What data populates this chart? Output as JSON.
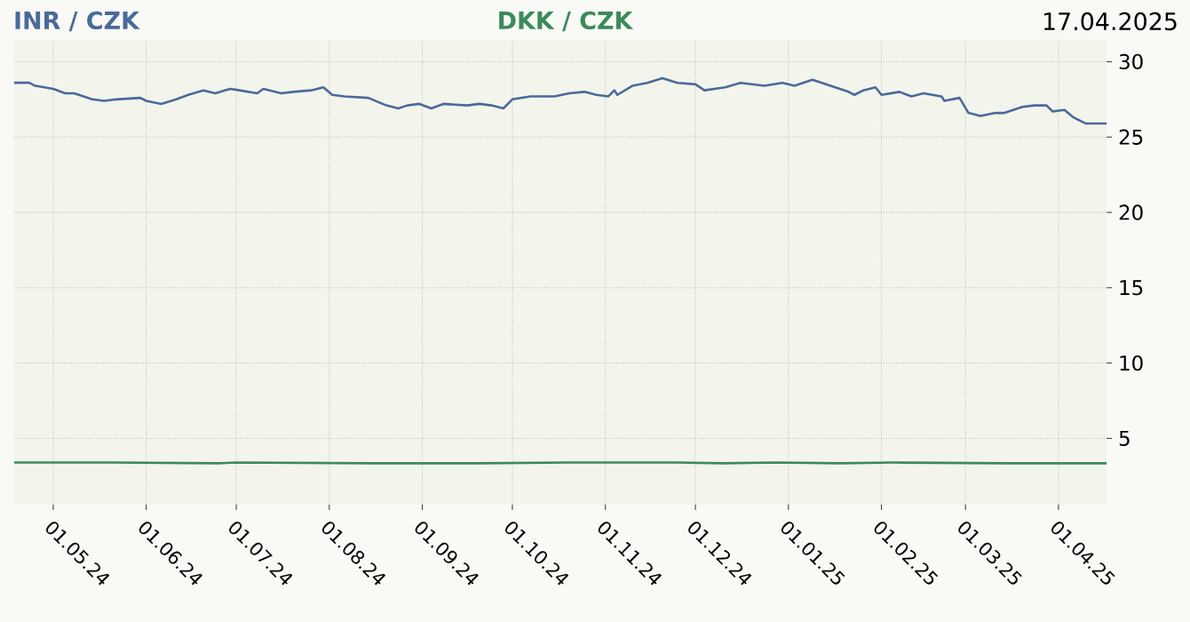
{
  "chart_data": {
    "type": "line",
    "annotations": [
      "17.04.2025"
    ],
    "xlim": [
      "2024-04-18",
      "2025-04-17"
    ],
    "xticks": [
      {
        "value": "2024-05-01",
        "label": "01.05.24"
      },
      {
        "value": "2024-06-01",
        "label": "01.06.24"
      },
      {
        "value": "2024-07-01",
        "label": "01.07.24"
      },
      {
        "value": "2024-08-01",
        "label": "01.08.24"
      },
      {
        "value": "2024-09-01",
        "label": "01.09.24"
      },
      {
        "value": "2024-10-01",
        "label": "01.10.24"
      },
      {
        "value": "2024-11-01",
        "label": "01.11.24"
      },
      {
        "value": "2024-12-01",
        "label": "01.12.24"
      },
      {
        "value": "2025-01-01",
        "label": "01.01.25"
      },
      {
        "value": "2025-02-01",
        "label": "01.02.25"
      },
      {
        "value": "2025-03-01",
        "label": "01.03.25"
      },
      {
        "value": "2025-04-01",
        "label": "01.04.25"
      }
    ],
    "ylim": [
      0.6,
      31.5
    ],
    "yticks": [
      5,
      10,
      15,
      20,
      25,
      30
    ],
    "grid": true,
    "series": [
      {
        "name": "INR / CZK",
        "color": "#4a6a9a",
        "x": [
          "2024-04-18",
          "2024-04-23",
          "2024-04-25",
          "2024-05-01",
          "2024-05-05",
          "2024-05-08",
          "2024-05-14",
          "2024-05-18",
          "2024-05-22",
          "2024-05-30",
          "2024-06-01",
          "2024-06-06",
          "2024-06-11",
          "2024-06-15",
          "2024-06-20",
          "2024-06-24",
          "2024-06-29",
          "2024-07-02",
          "2024-07-08",
          "2024-07-10",
          "2024-07-16",
          "2024-07-20",
          "2024-07-26",
          "2024-07-30",
          "2024-08-02",
          "2024-08-06",
          "2024-08-14",
          "2024-08-20",
          "2024-08-24",
          "2024-08-27",
          "2024-08-31",
          "2024-09-04",
          "2024-09-08",
          "2024-09-16",
          "2024-09-20",
          "2024-09-24",
          "2024-09-28",
          "2024-10-01",
          "2024-10-07",
          "2024-10-15",
          "2024-10-20",
          "2024-10-25",
          "2024-10-29",
          "2024-11-02",
          "2024-11-04",
          "2024-11-05",
          "2024-11-10",
          "2024-11-15",
          "2024-11-20",
          "2024-11-25",
          "2024-12-01",
          "2024-12-04",
          "2024-12-11",
          "2024-12-16",
          "2024-12-24",
          "2024-12-30",
          "2025-01-03",
          "2025-01-09",
          "2025-01-15",
          "2025-01-21",
          "2025-01-23",
          "2025-01-26",
          "2025-01-30",
          "2025-02-01",
          "2025-02-07",
          "2025-02-11",
          "2025-02-15",
          "2025-02-21",
          "2025-02-22",
          "2025-02-27",
          "2025-03-02",
          "2025-03-06",
          "2025-03-11",
          "2025-03-14",
          "2025-03-20",
          "2025-03-24",
          "2025-03-28",
          "2025-03-30",
          "2025-04-03",
          "2025-04-06",
          "2025-04-10",
          "2025-04-17"
        ],
        "values": [
          28.6,
          28.6,
          28.4,
          28.2,
          27.9,
          27.9,
          27.5,
          27.4,
          27.5,
          27.6,
          27.4,
          27.2,
          27.5,
          27.8,
          28.1,
          27.9,
          28.2,
          28.1,
          27.9,
          28.2,
          27.9,
          28.0,
          28.1,
          28.3,
          27.8,
          27.7,
          27.6,
          27.1,
          26.9,
          27.1,
          27.2,
          26.9,
          27.2,
          27.1,
          27.2,
          27.1,
          26.9,
          27.5,
          27.7,
          27.7,
          27.9,
          28.0,
          27.8,
          27.7,
          28.1,
          27.8,
          28.4,
          28.6,
          28.9,
          28.6,
          28.5,
          28.1,
          28.3,
          28.6,
          28.4,
          28.6,
          28.4,
          28.8,
          28.4,
          28.0,
          27.8,
          28.1,
          28.3,
          27.8,
          28.0,
          27.7,
          27.9,
          27.7,
          27.4,
          27.6,
          26.6,
          26.4,
          26.6,
          26.6,
          27.0,
          27.1,
          27.1,
          26.7,
          26.8,
          26.3,
          25.9,
          25.9
        ]
      },
      {
        "name": "DKK / CZK",
        "color": "#3c8a5a",
        "x": [
          "2024-04-18",
          "2024-05-20",
          "2024-06-25",
          "2024-07-01",
          "2024-08-15",
          "2024-09-20",
          "2024-10-20",
          "2024-11-25",
          "2024-12-10",
          "2024-12-28",
          "2025-01-18",
          "2025-02-05",
          "2025-03-15",
          "2025-04-17"
        ],
        "values": [
          3.4,
          3.4,
          3.35,
          3.4,
          3.35,
          3.35,
          3.4,
          3.4,
          3.35,
          3.4,
          3.35,
          3.4,
          3.35,
          3.35
        ]
      }
    ]
  }
}
